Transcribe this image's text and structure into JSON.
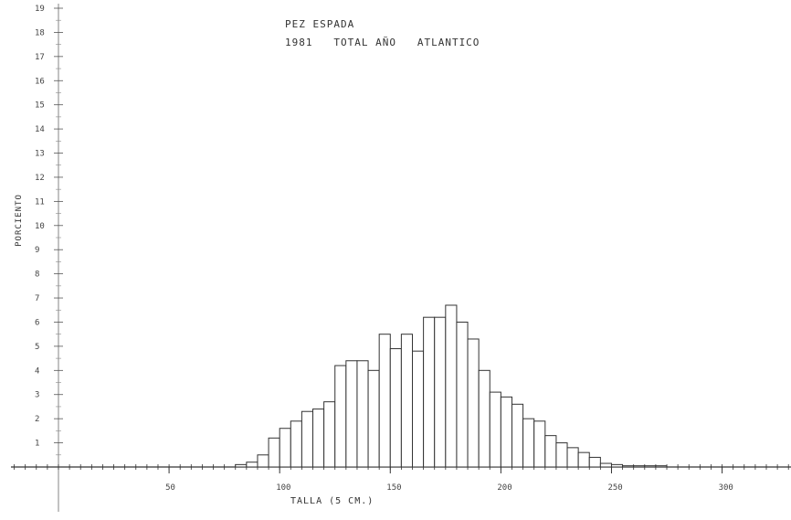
{
  "chart_data": {
    "type": "bar",
    "title": "PEZ ESPADA",
    "subtitle": "1981   TOTAL AÑO   ATLANTICO",
    "xlabel": "TALLA (5 CM.)",
    "ylabel": "PORCIENTO",
    "xlim": [
      0,
      320
    ],
    "ylim": [
      0,
      19
    ],
    "xticks": [
      "50",
      "100",
      "150",
      "200",
      "250",
      "300"
    ],
    "yticks": [
      "1",
      "2",
      "3",
      "4",
      "5",
      "6",
      "7",
      "8",
      "9",
      "10",
      "11",
      "12",
      "13",
      "14",
      "15",
      "16",
      "17",
      "18",
      "19"
    ],
    "bar_width": 5,
    "x": [
      80,
      85,
      90,
      95,
      100,
      105,
      110,
      115,
      120,
      125,
      130,
      135,
      140,
      145,
      150,
      155,
      160,
      165,
      170,
      175,
      180,
      185,
      190,
      195,
      200,
      205,
      210,
      215,
      220,
      225,
      230,
      235,
      240,
      245,
      250,
      255,
      260,
      265,
      270
    ],
    "values": [
      0.1,
      0.2,
      0.5,
      1.2,
      1.6,
      1.9,
      2.3,
      2.4,
      2.7,
      4.2,
      4.4,
      4.4,
      4.0,
      5.5,
      4.9,
      5.5,
      4.8,
      6.2,
      6.2,
      6.7,
      6.0,
      5.3,
      4.0,
      3.1,
      2.9,
      2.6,
      2.0,
      1.9,
      1.3,
      1.0,
      0.8,
      0.6,
      0.4,
      0.15,
      0.1,
      0.05,
      0.05,
      0.05,
      0.05
    ]
  }
}
